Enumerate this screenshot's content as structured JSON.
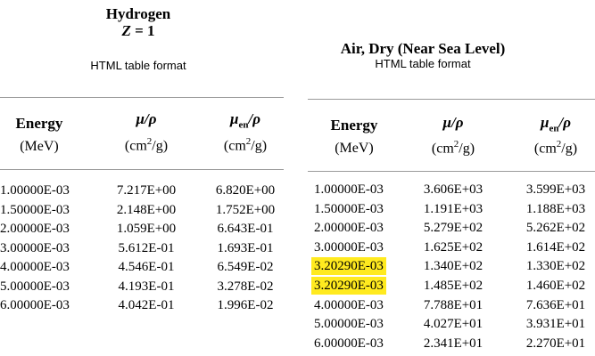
{
  "left": {
    "title": "Hydrogen",
    "subtitle_sym": "Z",
    "subtitle_val": "= 1",
    "format_note": "HTML table format",
    "headers": {
      "energy": "Energy",
      "energy_unit": "(MeV)",
      "mu_sym": "μ/ρ",
      "mu_unit_base": "(cm",
      "mu_unit_exp": "2",
      "mu_unit_tail": "/g)",
      "muen_sym": "μ",
      "muen_sub": "en",
      "muen_tail": "/ρ",
      "muen_unit_base": "(cm",
      "muen_unit_exp": "2",
      "muen_unit_tail": "/g)"
    },
    "rows": [
      {
        "energy": "1.00000E-03",
        "mu": "7.217E+00",
        "muen": "6.820E+00"
      },
      {
        "energy": "1.50000E-03",
        "mu": "2.148E+00",
        "muen": "1.752E+00"
      },
      {
        "energy": "2.00000E-03",
        "mu": "1.059E+00",
        "muen": "6.643E-01"
      },
      {
        "energy": "3.00000E-03",
        "mu": "5.612E-01",
        "muen": "1.693E-01"
      },
      {
        "energy": "4.00000E-03",
        "mu": "4.546E-01",
        "muen": "6.549E-02"
      },
      {
        "energy": "5.00000E-03",
        "mu": "4.193E-01",
        "muen": "3.278E-02"
      },
      {
        "energy": "6.00000E-03",
        "mu": "4.042E-01",
        "muen": "1.996E-02"
      }
    ]
  },
  "right": {
    "title": "Air, Dry (Near Sea Level)",
    "format_note": "HTML table format",
    "headers": {
      "energy": "Energy",
      "energy_unit": "(MeV)",
      "mu_sym": "μ/ρ",
      "mu_unit_base": "(cm",
      "mu_unit_exp": "2",
      "mu_unit_tail": "/g)",
      "muen_sym": "μ",
      "muen_sub": "en",
      "muen_tail": "/ρ",
      "muen_unit_base": "(cm",
      "muen_unit_exp": "2",
      "muen_unit_tail": "/g)"
    },
    "highlight_color": "#ffea1f",
    "rows": [
      {
        "energy": "1.00000E-03",
        "mu": "3.606E+03",
        "muen": "3.599E+03",
        "highlighted": false
      },
      {
        "energy": "1.50000E-03",
        "mu": "1.191E+03",
        "muen": "1.188E+03",
        "highlighted": false
      },
      {
        "energy": "2.00000E-03",
        "mu": "5.279E+02",
        "muen": "5.262E+02",
        "highlighted": false
      },
      {
        "energy": "3.00000E-03",
        "mu": "1.625E+02",
        "muen": "1.614E+02",
        "highlighted": false
      },
      {
        "energy": "3.20290E-03",
        "mu": "1.340E+02",
        "muen": "1.330E+02",
        "highlighted": true
      },
      {
        "energy": "3.20290E-03",
        "mu": "1.485E+02",
        "muen": "1.460E+02",
        "highlighted": true
      },
      {
        "energy": "4.00000E-03",
        "mu": "7.788E+01",
        "muen": "7.636E+01",
        "highlighted": false
      },
      {
        "energy": "5.00000E-03",
        "mu": "4.027E+01",
        "muen": "3.931E+01",
        "highlighted": false
      },
      {
        "energy": "6.00000E-03",
        "mu": "2.341E+01",
        "muen": "2.270E+01",
        "highlighted": false
      }
    ]
  }
}
